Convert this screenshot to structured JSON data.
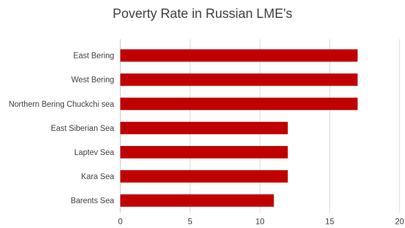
{
  "chart_data": {
    "type": "bar",
    "orientation": "horizontal",
    "title": "Poverty Rate in Russian LME's",
    "xlabel": "",
    "ylabel": "",
    "categories": [
      "East Bering",
      "West Bering",
      "Northern Bering Chuckchi sea",
      "East Siberian Sea",
      "Laptev Sea",
      "Kara Sea",
      "Barents Sea"
    ],
    "values": [
      17,
      17,
      17,
      12,
      12,
      12,
      11
    ],
    "xlim": [
      0,
      20
    ],
    "xticks": [
      "0",
      "5",
      "10",
      "15",
      "20"
    ],
    "grid": "vertical",
    "bar_color": "#c00000"
  }
}
